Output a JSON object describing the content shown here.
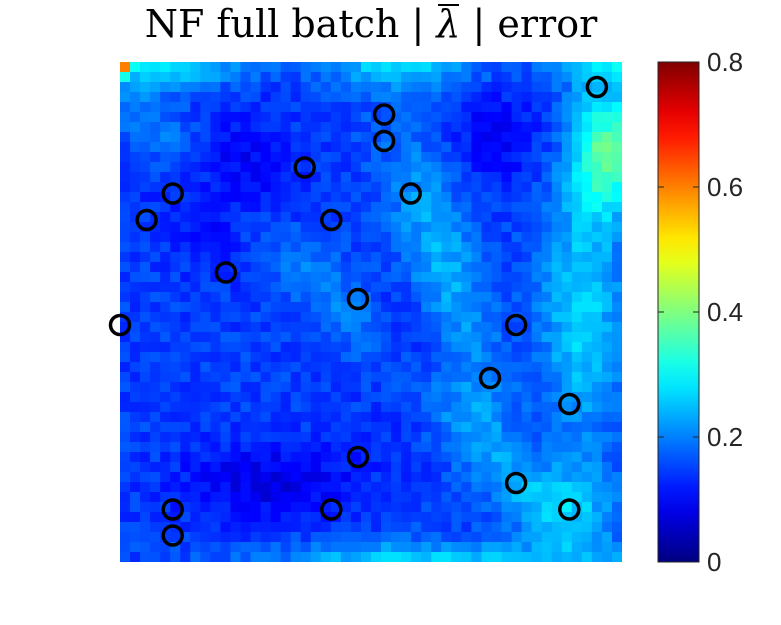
{
  "chart_data": {
    "type": "heatmap",
    "title_parts": [
      "NF full batch | ",
      "λ",
      " | error"
    ],
    "xlabel": "",
    "ylabel": "",
    "colormap": "jet",
    "colorbar": {
      "range": [
        0,
        0.8
      ],
      "ticks": [
        0,
        0.2,
        0.4,
        0.6,
        0.8
      ],
      "tick_labels": [
        "0",
        "0.2",
        "0.4",
        "0.6",
        "0.8"
      ]
    },
    "x_range": [
      0,
      1
    ],
    "y_range": [
      0,
      1
    ],
    "axes_visible": false,
    "markers": {
      "shape": "open-circle",
      "color": "#000000",
      "points": [
        [
          0.95,
          0.95
        ],
        [
          0.526,
          0.895
        ],
        [
          0.526,
          0.842
        ],
        [
          0.368,
          0.789
        ],
        [
          0.105,
          0.737
        ],
        [
          0.579,
          0.737
        ],
        [
          0.053,
          0.684
        ],
        [
          0.421,
          0.684
        ],
        [
          0.211,
          0.579
        ],
        [
          0.474,
          0.526
        ],
        [
          0.0,
          0.474
        ],
        [
          0.789,
          0.474
        ],
        [
          0.737,
          0.368
        ],
        [
          0.895,
          0.316
        ],
        [
          0.474,
          0.21
        ],
        [
          0.789,
          0.158
        ],
        [
          0.105,
          0.105
        ],
        [
          0.421,
          0.105
        ],
        [
          0.895,
          0.105
        ],
        [
          0.105,
          0.053
        ]
      ]
    },
    "field_components": {
      "base_level": 0.15,
      "high_error_regions": [
        {
          "x": 0.99,
          "y": 0.83,
          "value": 0.4,
          "label": "top-right band"
        },
        {
          "x": 0.6,
          "y": 0.63,
          "value": 0.28,
          "label": "diagonal ridge"
        },
        {
          "x": 0.0,
          "y": 1.0,
          "value": 0.8,
          "label": "top-left corner"
        },
        {
          "x": 0.6,
          "y": 0.02,
          "value": 0.3,
          "label": "bottom edge"
        }
      ],
      "low_error_regions": [
        {
          "x": 0.2,
          "y": 0.75,
          "value": 0.05
        },
        {
          "x": 0.3,
          "y": 0.18,
          "value": 0.05
        },
        {
          "x": 0.55,
          "y": 0.45,
          "value": 0.06
        }
      ]
    }
  }
}
